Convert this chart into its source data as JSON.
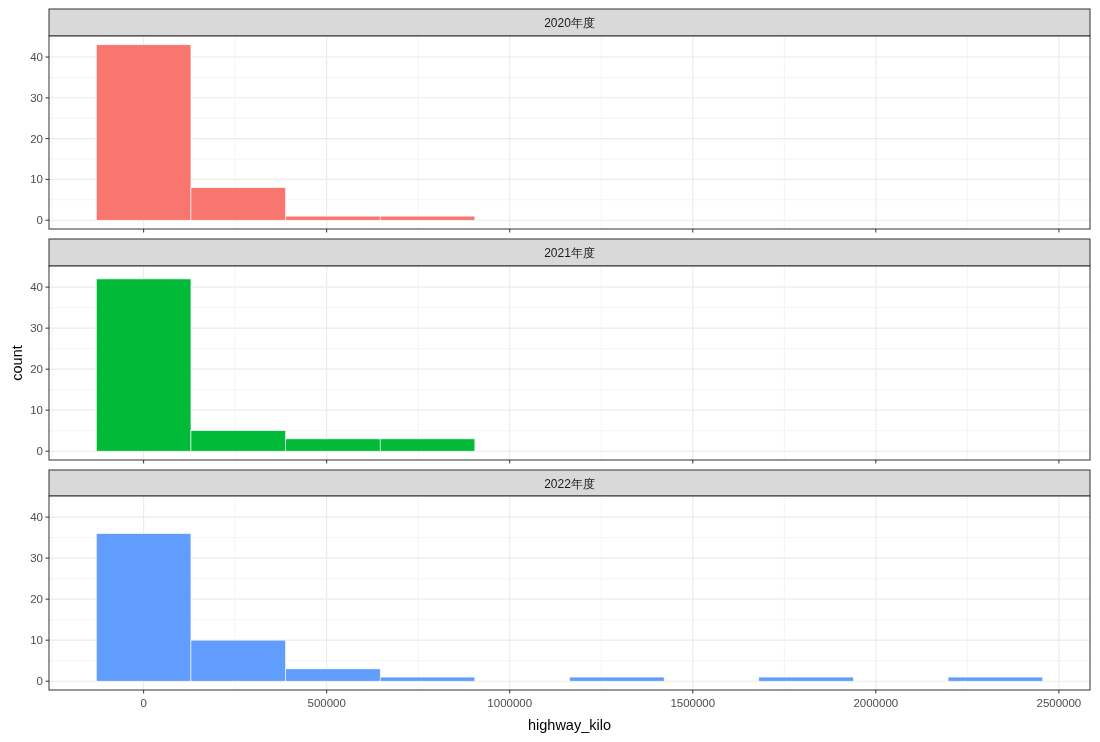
{
  "chart_data": [
    {
      "type": "histogram",
      "title": "2020年度",
      "bins": [
        -129250,
        129250,
        387750,
        646250,
        904750,
        1163250,
        1421750,
        1680250,
        1938750,
        2197250,
        2455750
      ],
      "values": [
        43,
        8,
        1,
        1,
        0,
        0,
        0,
        0,
        0,
        0
      ],
      "color": "#F8766D",
      "xlim": [
        -258500,
        2585000
      ],
      "ylim": [
        -2.15,
        45.15
      ],
      "xticks": [
        0,
        500000,
        1000000,
        1500000,
        2000000,
        2500000
      ],
      "yticks": [
        0,
        10,
        20,
        30,
        40
      ],
      "grid": true,
      "tick_labels": "y"
    },
    {
      "type": "histogram",
      "title": "2021年度",
      "ylabel": "count",
      "bins": [
        -129250,
        129250,
        387750,
        646250,
        904750,
        1163250,
        1421750,
        1680250,
        1938750,
        2197250,
        2455750
      ],
      "values": [
        42,
        5,
        3,
        3,
        0,
        0,
        0,
        0,
        0,
        0
      ],
      "color": "#00BA38",
      "xlim": [
        -258500,
        2585000
      ],
      "ylim": [
        -2.15,
        45.15
      ],
      "xticks": [
        0,
        500000,
        1000000,
        1500000,
        2000000,
        2500000
      ],
      "yticks": [
        0,
        10,
        20,
        30,
        40
      ],
      "grid": true,
      "tick_labels": "y"
    },
    {
      "type": "histogram",
      "title": "2022年度",
      "xlabel": "highway_kilo",
      "bins": [
        -129250,
        129250,
        387750,
        646250,
        904750,
        1163250,
        1421750,
        1680250,
        1938750,
        2197250,
        2455750
      ],
      "values": [
        36,
        10,
        3,
        1,
        0,
        1,
        0,
        1,
        0,
        1
      ],
      "color": "#619CFF",
      "xlim": [
        -258500,
        2585000
      ],
      "ylim": [
        -2.15,
        45.15
      ],
      "xticks": [
        0,
        500000,
        1000000,
        1500000,
        2000000,
        2500000
      ],
      "yticks": [
        0,
        10,
        20,
        30,
        40
      ],
      "grid": true
    }
  ]
}
